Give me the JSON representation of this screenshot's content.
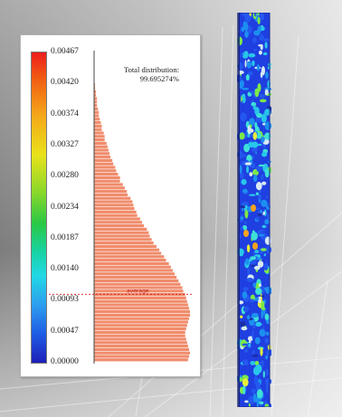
{
  "chart_data": {
    "type": "histogram",
    "colorbar_ticks": [
      "0.00467",
      "0.00420",
      "0.00374",
      "0.00327",
      "0.00280",
      "0.00234",
      "0.00187",
      "0.00140",
      "0.00093",
      "0.00047",
      "0.00000"
    ],
    "value_range": [
      0,
      0.00467
    ],
    "annotations": {
      "total_line1": "Total distribution:",
      "total_line2": "99.695274%",
      "mean_label": "average",
      "mean_value": 0.00102
    },
    "bins_start": 0.00467,
    "bins_end": 0.0,
    "bin_counts": [
      0,
      0,
      0,
      0,
      0,
      0,
      0,
      0,
      0,
      1,
      1,
      2,
      2,
      3,
      3,
      3,
      4,
      5,
      5,
      6,
      7,
      8,
      8,
      10,
      11,
      11,
      13,
      14,
      15,
      16,
      17,
      19,
      20,
      22,
      23,
      25,
      27,
      27,
      30,
      32,
      34,
      35,
      38,
      40,
      41,
      42,
      44,
      45,
      48,
      50,
      52,
      55,
      57,
      58,
      60,
      62,
      65,
      68,
      70,
      73,
      75,
      78,
      80,
      82,
      84,
      86,
      88,
      90,
      92,
      93,
      95,
      96,
      97,
      98,
      99,
      100,
      100,
      99,
      98,
      97,
      96,
      95,
      95,
      96,
      97,
      98,
      99,
      100,
      99,
      98
    ]
  }
}
